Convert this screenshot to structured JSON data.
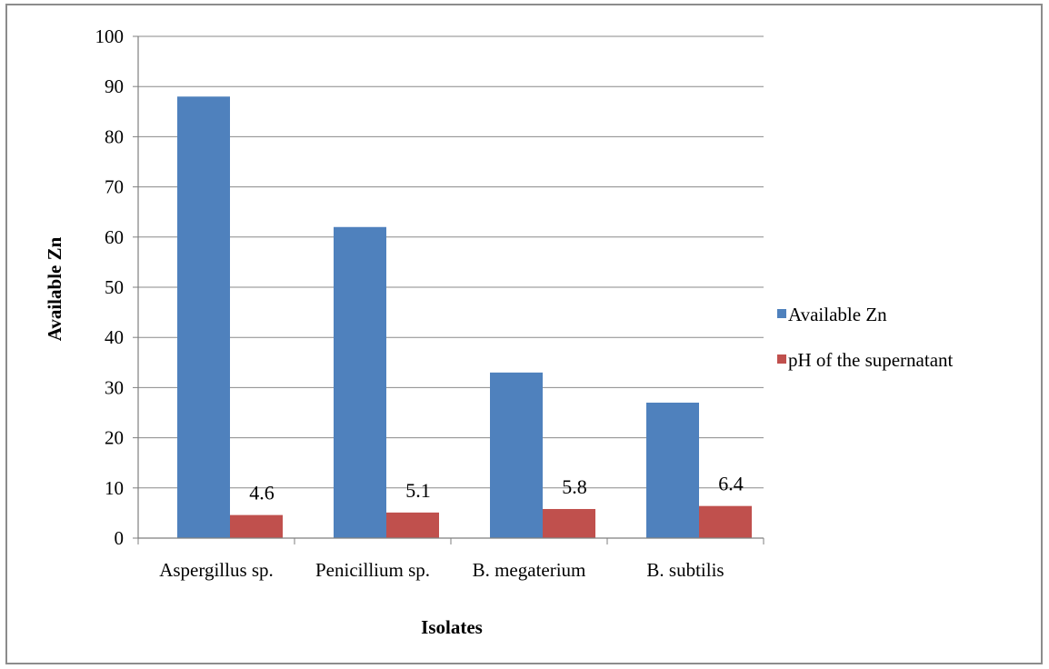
{
  "chart_data": {
    "type": "bar",
    "title": "",
    "xlabel": "Isolates",
    "ylabel": "Available Zn",
    "ylim": [
      0,
      100
    ],
    "yticks": [
      0,
      10,
      20,
      30,
      40,
      50,
      60,
      70,
      80,
      90,
      100
    ],
    "grid": true,
    "legend_position": "right",
    "categories": [
      "Aspergillus sp.",
      "Penicillium sp.",
      "B. megaterium",
      "B. subtilis"
    ],
    "series": [
      {
        "name": "Available Zn",
        "color": "#4f81bd",
        "values": [
          88,
          62,
          33,
          27
        ],
        "data_labels": false
      },
      {
        "name": "pH of the supernatant",
        "color": "#c0504d",
        "values": [
          4.6,
          5.1,
          5.8,
          6.4
        ],
        "data_labels": true
      }
    ]
  }
}
